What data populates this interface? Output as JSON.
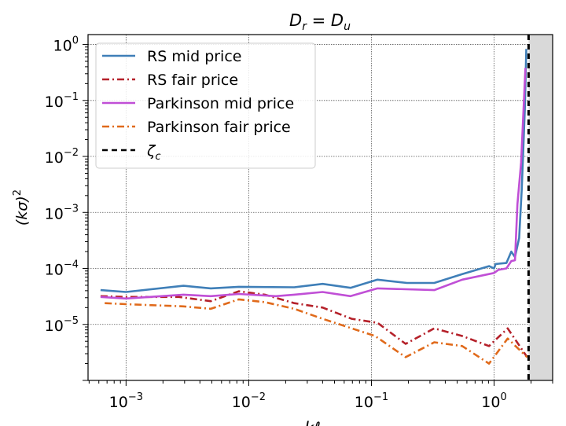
{
  "chart_data": {
    "type": "line",
    "title": {
      "base": "D",
      "sub1": "r",
      "eq": " = ",
      "base2": "D",
      "sub2": "u"
    },
    "xlabel": {
      "base": "kℓ",
      "sub": "u"
    },
    "ylabel": {
      "base": "(kσ)",
      "sup": "2"
    },
    "xscale": "log",
    "yscale": "log",
    "xlim": [
      0.00049,
      3.0
    ],
    "ylim": [
      1e-06,
      1.5
    ],
    "grid": true,
    "legend_position": "top-left",
    "x_ticks": [
      {
        "value": 0.001,
        "base": "10",
        "exp": "−3"
      },
      {
        "value": 0.01,
        "base": "10",
        "exp": "−2"
      },
      {
        "value": 0.1,
        "base": "10",
        "exp": "−1"
      },
      {
        "value": 1,
        "base": "10",
        "exp": "0"
      }
    ],
    "y_ticks": [
      {
        "value": 1,
        "base": "10",
        "exp": "0"
      },
      {
        "value": 0.1,
        "base": "10",
        "exp": "−1"
      },
      {
        "value": 0.01,
        "base": "10",
        "exp": "−2"
      },
      {
        "value": 0.001,
        "base": "10",
        "exp": "−3"
      },
      {
        "value": 0.0001,
        "base": "10",
        "exp": "−4"
      },
      {
        "value": 1e-05,
        "base": "10",
        "exp": "−5"
      }
    ],
    "series": [
      {
        "name": "RS mid price",
        "color": "#3f7fb8",
        "style": "solid",
        "x": [
          0.00062,
          0.001,
          0.00294,
          0.0049,
          0.0083,
          0.0235,
          0.04,
          0.0676,
          0.112,
          0.195,
          0.325,
          0.55,
          0.91,
          1.0,
          1.03,
          1.26,
          1.38,
          1.48,
          1.6,
          1.68,
          1.78,
          1.83
        ],
        "y": [
          4.1e-05,
          3.8e-05,
          4.9e-05,
          4.4e-05,
          4.7e-05,
          4.6e-05,
          5.3e-05,
          4.5e-05,
          6.3e-05,
          5.5e-05,
          5.5e-05,
          7.9e-05,
          0.00011,
          0.0001,
          0.00012,
          0.000125,
          0.0002,
          0.00016,
          0.00035,
          0.0026,
          0.068,
          0.83
        ]
      },
      {
        "name": "RS fair price",
        "color": "#b5212a",
        "style": "dashdot",
        "x": [
          0.00062,
          0.001,
          0.0027,
          0.0049,
          0.0083,
          0.0135,
          0.0235,
          0.04,
          0.069,
          0.112,
          0.19,
          0.325,
          0.55,
          0.91,
          1.29,
          1.86
        ],
        "y": [
          3.2e-05,
          3.1e-05,
          3.1e-05,
          2.6e-05,
          3.9e-05,
          3.4e-05,
          2.4e-05,
          2e-05,
          1.26e-05,
          1.07e-05,
          4.5e-06,
          8.5e-06,
          6.2e-06,
          4.1e-06,
          8.5e-06,
          2.6e-06
        ]
      },
      {
        "name": "Parkinson mid price",
        "color": "#c04fd6",
        "style": "solid",
        "x": [
          0.00062,
          0.001,
          0.00294,
          0.0049,
          0.0083,
          0.0166,
          0.0235,
          0.04,
          0.0676,
          0.112,
          0.325,
          0.55,
          1.0,
          1.08,
          1.26,
          1.38,
          1.48,
          1.55,
          1.66,
          1.8
        ],
        "y": [
          3.1e-05,
          2.9e-05,
          3.4e-05,
          3.2e-05,
          3.5e-05,
          3.2e-05,
          3.4e-05,
          3.8e-05,
          3.2e-05,
          4.4e-05,
          4.1e-05,
          6.3e-05,
          8.3e-05,
          9.4e-05,
          0.0001,
          0.000135,
          0.00014,
          0.0014,
          0.0078,
          0.38
        ]
      },
      {
        "name": "Parkinson fair price",
        "color": "#e06a1b",
        "style": "dashdot",
        "x": [
          0.00067,
          0.001,
          0.00294,
          0.0049,
          0.0083,
          0.0135,
          0.0235,
          0.04,
          0.107,
          0.19,
          0.325,
          0.55,
          0.91,
          1.29,
          1.86
        ],
        "y": [
          2.4e-05,
          2.3e-05,
          2.1e-05,
          1.9e-05,
          2.8e-05,
          2.5e-05,
          1.9e-05,
          1.26e-05,
          6.2e-06,
          2.6e-06,
          4.8e-06,
          4.1e-06,
          2e-06,
          5.6e-06,
          2.6e-06
        ]
      }
    ],
    "vline": {
      "name": "ζ",
      "sub": "c",
      "x": 1.91,
      "color": "#000000",
      "style": "dashed",
      "shade_right_color": "#d9d9d9"
    }
  }
}
